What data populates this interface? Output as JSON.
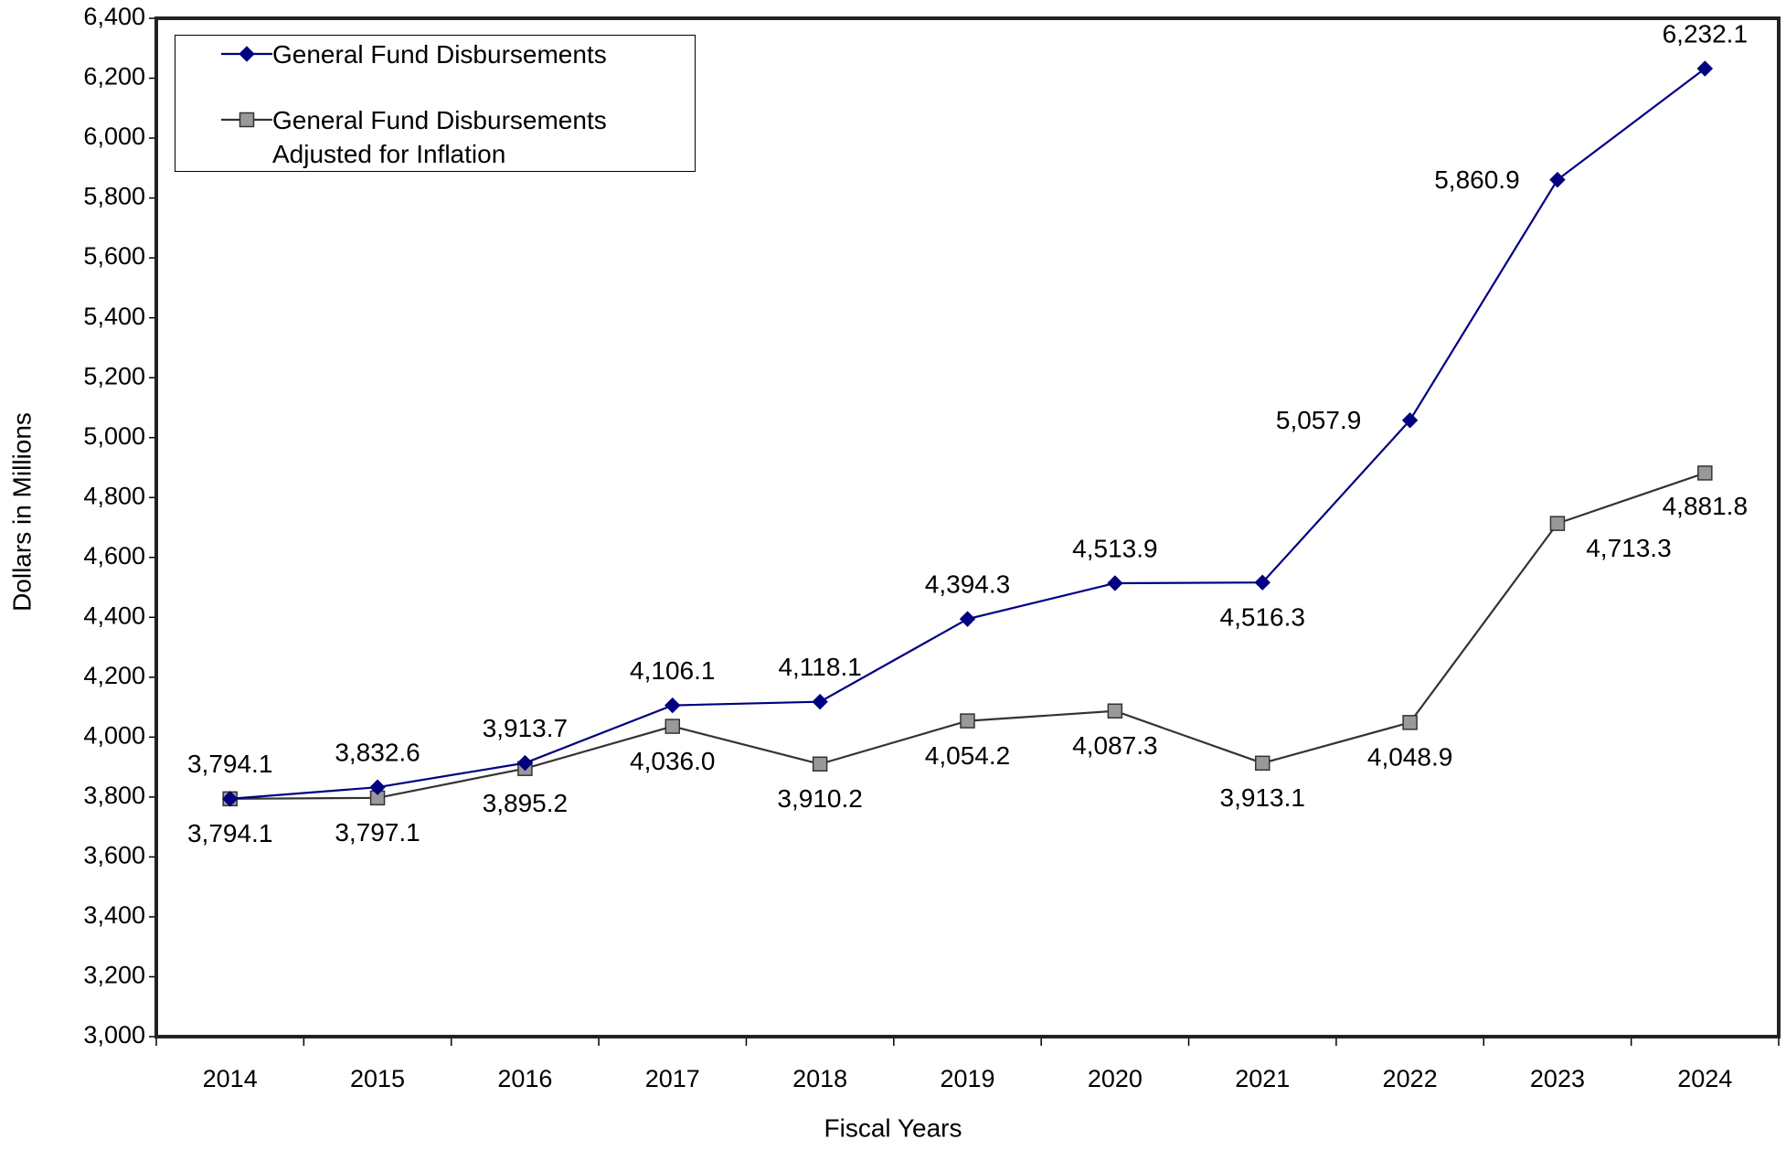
{
  "chart_data": {
    "type": "line",
    "x_label": "Fiscal Years",
    "y_label": "Dollars in Millions",
    "categories": [
      "2014",
      "2015",
      "2016",
      "2017",
      "2018",
      "2019",
      "2020",
      "2021",
      "2022",
      "2023",
      "2024"
    ],
    "series": [
      {
        "name": "General Fund Disbursements",
        "color": "#000080",
        "marker": "diamond",
        "values": [
          3794.1,
          3832.6,
          3913.7,
          4106.1,
          4118.1,
          4394.3,
          4513.9,
          4516.3,
          5057.9,
          5860.9,
          6232.1
        ],
        "value_labels": [
          "3,794.1",
          "3,832.6",
          "3,913.7",
          "4,106.1",
          "4,118.1",
          "4,394.3",
          "4,513.9",
          "4,516.3",
          "5,057.9",
          "5,860.9",
          "6,232.1"
        ]
      },
      {
        "name": "General Fund Disbursements Adjusted for Inflation",
        "color": "#333333",
        "marker": "square",
        "values": [
          3794.1,
          3797.1,
          3895.2,
          4036.0,
          3910.2,
          4054.2,
          4087.3,
          3913.1,
          4048.9,
          4713.3,
          4881.8
        ],
        "value_labels": [
          "3,794.1",
          "3,797.1",
          "3,895.2",
          "4,036.0",
          "3,910.2",
          "4,054.2",
          "4,087.3",
          "3,913.1",
          "4,048.9",
          "4,713.3",
          "4,881.8"
        ]
      }
    ],
    "ylim": [
      3000,
      6400
    ],
    "yticks": [
      {
        "value": 3000,
        "label": "3,000"
      },
      {
        "value": 3200,
        "label": "3,200"
      },
      {
        "value": 3400,
        "label": "3,400"
      },
      {
        "value": 3600,
        "label": "3,600"
      },
      {
        "value": 3800,
        "label": "3,800"
      },
      {
        "value": 4000,
        "label": "4,000"
      },
      {
        "value": 4200,
        "label": "4,200"
      },
      {
        "value": 4400,
        "label": "4,400"
      },
      {
        "value": 4600,
        "label": "4,600"
      },
      {
        "value": 4800,
        "label": "4,800"
      },
      {
        "value": 5000,
        "label": "5,000"
      },
      {
        "value": 5200,
        "label": "5,200"
      },
      {
        "value": 5400,
        "label": "5,400"
      },
      {
        "value": 5600,
        "label": "5,600"
      },
      {
        "value": 5800,
        "label": "5,800"
      },
      {
        "value": 6000,
        "label": "6,000"
      },
      {
        "value": 6200,
        "label": "6,200"
      },
      {
        "value": 6400,
        "label": "6,400"
      }
    ],
    "grid": false,
    "legend": "upper left"
  }
}
